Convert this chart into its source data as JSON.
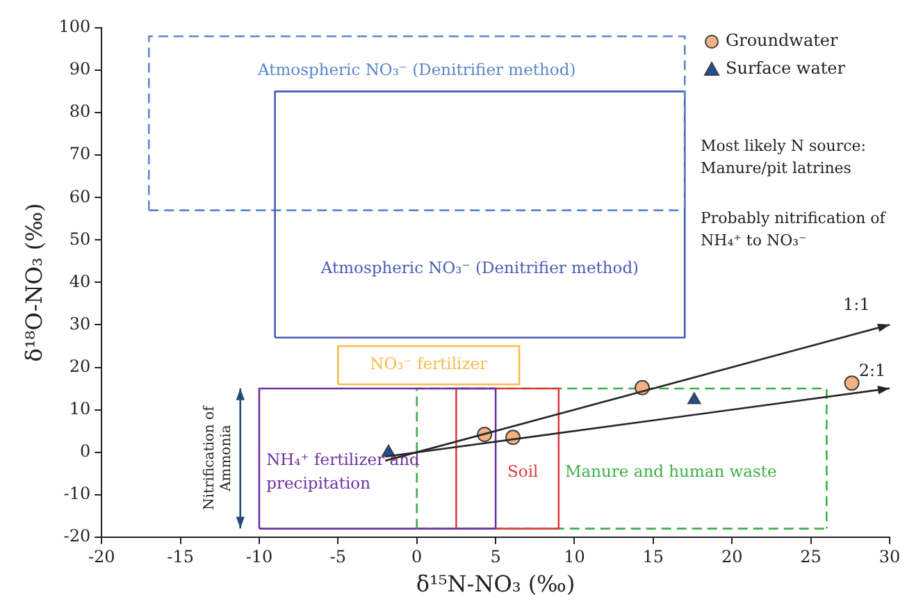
{
  "chart_data": {
    "type": "scatter",
    "xlabel": "δ¹⁵N-NO₃ (‰)",
    "ylabel": "δ¹⁸O-NO₃ (‰)",
    "xlim": [
      -20,
      30
    ],
    "xticks": [
      -20,
      -15,
      -10,
      -5,
      0,
      5,
      10,
      15,
      20,
      25,
      30
    ],
    "ylim": [
      -20,
      100
    ],
    "yticks": [
      -20,
      -10,
      0,
      10,
      20,
      30,
      40,
      50,
      60,
      70,
      80,
      90,
      100
    ],
    "legend": "top right",
    "series": [
      {
        "name": "Groundwater",
        "type": "scatter",
        "marker": "circle",
        "color": "#f4b183",
        "x": [
          4.3,
          6.1,
          14.3,
          27.6
        ],
        "values": [
          4.2,
          3.5,
          15.2,
          16.3
        ]
      },
      {
        "name": "Surface water",
        "type": "scatter",
        "marker": "triangle",
        "color": "#1f4e9c",
        "x": [
          -1.8,
          17.6
        ],
        "values": [
          0,
          12.3
        ]
      },
      {
        "name": "Atmospheric NO₃⁻ (Denitrifier method)",
        "type": "line",
        "marker": "none",
        "line_style": "dashed",
        "color": "#5b86c9",
        "x": [
          -17,
          -17,
          17,
          17
        ],
        "values": [
          57,
          98,
          98,
          57
        ]
      },
      {
        "name": "Atmospheric NO₃⁻ (Denitrifier method)",
        "type": "line",
        "marker": "none",
        "line_style": "solid",
        "color": "#4a5cb5",
        "x": [
          -9,
          -9,
          17,
          17
        ],
        "values": [
          27,
          85,
          85,
          27
        ]
      },
      {
        "name": "NO₃⁻ fertilizer",
        "type": "line",
        "marker": "none",
        "line_style": "solid",
        "color": "#f7bb4a",
        "x": [
          -5,
          -5,
          6.5,
          6.5
        ],
        "values": [
          16,
          25,
          25,
          16
        ]
      },
      {
        "name": "NH₄⁺ fertilizer and precipitation",
        "type": "line",
        "marker": "none",
        "line_style": "solid",
        "color": "#7030a0",
        "x": [
          -10,
          -10,
          5,
          5
        ],
        "values": [
          -18,
          15,
          15,
          -18
        ]
      },
      {
        "name": "Soil",
        "type": "line",
        "marker": "none",
        "line_style": "solid",
        "color": "#e03c3c",
        "x": [
          2.5,
          2.5,
          9,
          9
        ],
        "values": [
          -18,
          15,
          15,
          -18
        ]
      },
      {
        "name": "Manure and human waste",
        "type": "line",
        "marker": "none",
        "line_style": "dashed",
        "color": "#3cb043",
        "x": [
          0,
          0,
          26,
          26
        ],
        "values": [
          -18,
          15,
          15,
          -18
        ]
      },
      {
        "type": "line",
        "marker": "none",
        "line_style": "dashed",
        "color": "#5b86c9",
        "x": [
          -17,
          17
        ],
        "values": [
          57,
          57
        ]
      },
      {
        "type": "line",
        "marker": "none",
        "line_style": "solid",
        "color": "#4a5cb5",
        "x": [
          -9,
          17
        ],
        "values": [
          27,
          27
        ]
      },
      {
        "type": "line",
        "marker": "none",
        "line_style": "solid",
        "color": "#f7bb4a",
        "x": [
          -5,
          6.5
        ],
        "values": [
          16,
          16
        ]
      },
      {
        "type": "line",
        "marker": "none",
        "line_style": "solid",
        "color": "#7030a0",
        "x": [
          -10,
          5
        ],
        "values": [
          -18,
          -18
        ]
      },
      {
        "type": "line",
        "marker": "none",
        "line_style": "solid",
        "color": "#e03c3c",
        "x": [
          2.5,
          9
        ],
        "values": [
          -18,
          -18
        ]
      },
      {
        "type": "line",
        "marker": "none",
        "line_style": "dashed",
        "color": "#3cb043",
        "x": [
          0,
          26
        ],
        "values": [
          -18,
          -18
        ]
      }
    ],
    "annotations": [
      "Most likely N source: Manure/pit latrines",
      "Probably nitrification of NH₄⁺ to NO₃⁻",
      "1:1",
      "2:1",
      "Nitrification of Ammonia"
    ]
  }
}
